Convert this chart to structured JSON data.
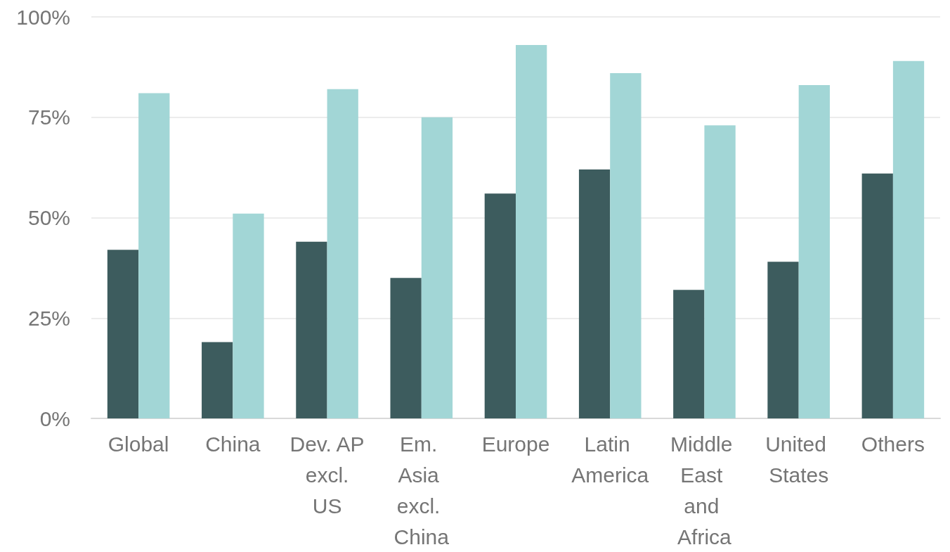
{
  "chart_data": {
    "type": "bar",
    "categories": [
      "Global",
      "China",
      "Dev. AP excl. US",
      "Em. Asia excl. China",
      "Europe",
      "Latin America",
      "Middle East and Africa",
      "United States",
      "Others"
    ],
    "series": [
      {
        "color": "#3d5c5e",
        "values": [
          42,
          19,
          44,
          35,
          56,
          62,
          32,
          39,
          61
        ]
      },
      {
        "color": "#a2d6d6",
        "values": [
          81,
          51,
          82,
          75,
          93,
          86,
          73,
          83,
          89
        ]
      }
    ],
    "ylim": [
      0,
      100
    ],
    "yticks": [
      {
        "value": 0,
        "label": "0%"
      },
      {
        "value": 25,
        "label": "25%"
      },
      {
        "value": 50,
        "label": "50%"
      },
      {
        "value": 75,
        "label": "75%"
      },
      {
        "value": 100,
        "label": "100%"
      }
    ],
    "grid": "y"
  }
}
